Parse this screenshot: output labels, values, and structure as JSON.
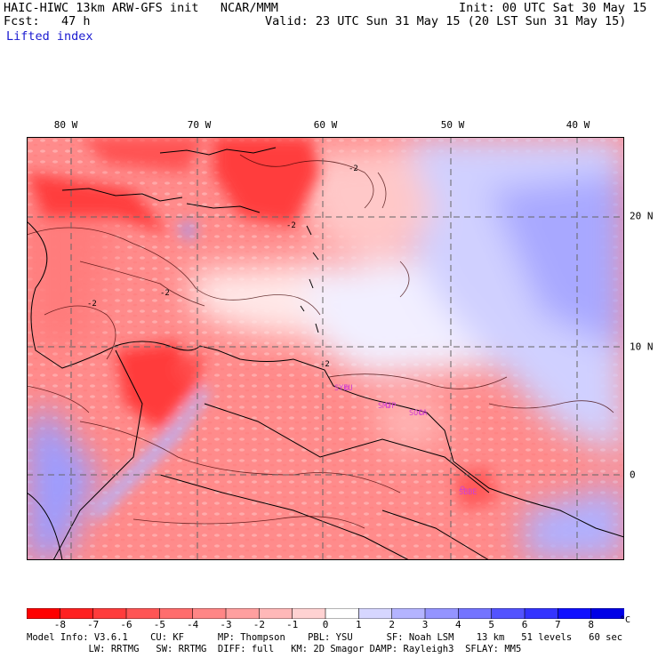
{
  "header": {
    "line1_left": "HAIC-HIWC 13km ARW-GFS init   NCAR/MMM",
    "line1_right": "Init: 00 UTC Sat 30 May 15",
    "line2_left": "Fcst:   47 h",
    "line2_right": "Valid: 23 UTC Sun 31 May 15 (20 LST Sun 31 May 15)",
    "field": "Lifted index"
  },
  "map": {
    "longitude_labels": [
      "80 W",
      "70 W",
      "60 W",
      "50 W",
      "40 W"
    ],
    "latitude_labels": [
      "20 N",
      "10 N",
      "0"
    ],
    "contour_labels": [
      "-2",
      "-2",
      "-2",
      "-2",
      "-2"
    ],
    "stations": [
      "SYEU",
      "SMJP",
      "SOCA",
      "SBBE"
    ]
  },
  "colorbar": {
    "ticks": [
      "-8",
      "-7",
      "-6",
      "-5",
      "-4",
      "-3",
      "-2",
      "-1",
      "0",
      "1",
      "2",
      "3",
      "4",
      "5",
      "6",
      "7",
      "8"
    ],
    "unit": "°C",
    "colors": [
      "#ff0000",
      "#ff2121",
      "#ff3c3c",
      "#ff5555",
      "#ff6d6d",
      "#ff8686",
      "#ff9f9f",
      "#ffb8b8",
      "#ffd2d2",
      "#ffffff",
      "#d6d6ff",
      "#b4b4ff",
      "#9494ff",
      "#7474ff",
      "#5454ff",
      "#3434ff",
      "#1010ff",
      "#0000e6"
    ]
  },
  "footer": {
    "line1": "Model Info: V3.6.1    CU: KF      MP: Thompson    PBL: YSU      SF: Noah LSM    13 km   51 levels   60 sec",
    "line2": "           LW: RRTMG   SW: RRTMG  DIFF: full   KM: 2D Smagor DAMP: Rayleigh3  SFLAY: MM5"
  }
}
